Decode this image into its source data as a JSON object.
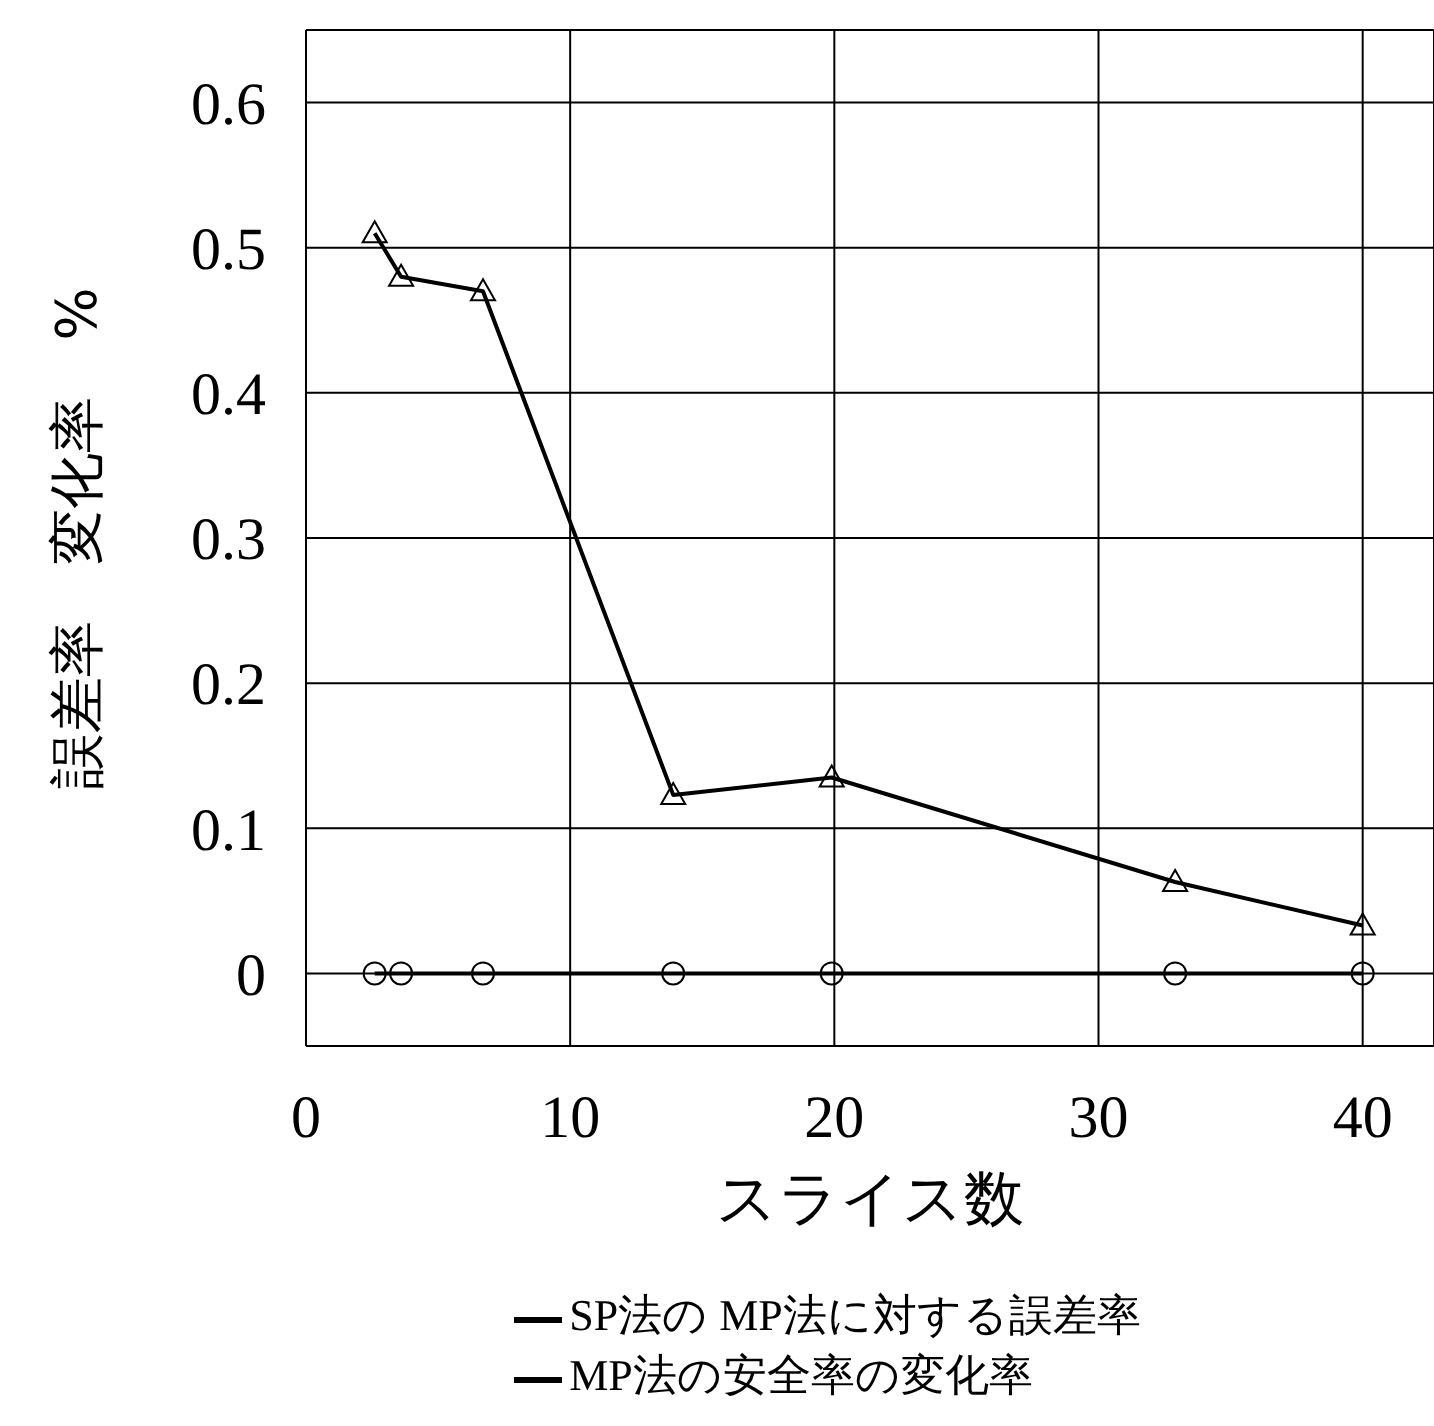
{
  "chart_data": {
    "type": "line",
    "xlabel": "スライス数",
    "ylabel": "誤差率　変化率　%",
    "x": [
      2.6,
      3.6,
      6.7,
      13.9,
      19.9,
      32.9,
      40
    ],
    "series": [
      {
        "name": "SP法の MP法に対する誤差率",
        "color": "#000000",
        "marker": "circle",
        "values": [
          0,
          0,
          0,
          0,
          0,
          0,
          0
        ]
      },
      {
        "name": "MP法の安全率の変化率",
        "color": "#000000",
        "marker": "triangle",
        "values": [
          0.51,
          0.48,
          0.47,
          0.123,
          0.135,
          0.063,
          0.033
        ]
      }
    ],
    "xlim": [
      0,
      42.7
    ],
    "xticks": [
      0,
      10,
      20,
      30,
      40
    ],
    "ylim": [
      -0.05,
      0.65
    ],
    "yticks": [
      0,
      0.1,
      0.2,
      0.3,
      0.4,
      0.5,
      0.6
    ],
    "grid": true,
    "legend": "bottom",
    "line_style": "solid"
  }
}
